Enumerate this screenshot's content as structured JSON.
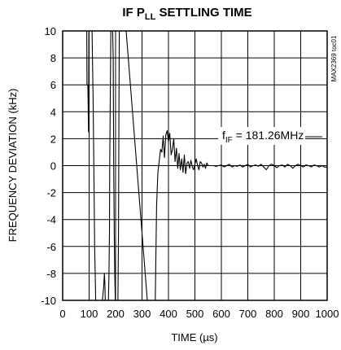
{
  "chart_data": {
    "type": "line",
    "title_main": "IF P",
    "title_sub": "LL",
    "title_rest": " SETTLING TIME",
    "xlabel": "TIME (µs)",
    "ylabel": "FREQUENCY DEVIATION (kHz)",
    "xlim": [
      0,
      1000
    ],
    "ylim": [
      -10,
      10
    ],
    "x_ticks": [
      0,
      100,
      200,
      300,
      400,
      500,
      600,
      700,
      800,
      900,
      1000
    ],
    "y_ticks": [
      10,
      8,
      6,
      4,
      2,
      0,
      -2,
      -4,
      -6,
      -8,
      -10
    ],
    "grid": true,
    "annotation_main": "f",
    "annotation_sub": "IF",
    "annotation_rest": " = 181.26MHz",
    "part_code": "MAX2369 toc01",
    "series": [
      {
        "x": [
          88,
          89,
          91,
          92,
          94,
          95,
          96,
          98,
          99,
          101,
          103,
          106,
          108,
          111,
          115,
          118,
          121,
          125,
          128,
          134,
          140,
          145,
          150,
          155,
          158,
          160,
          161,
          162,
          163,
          164,
          165,
          166,
          167,
          168,
          170,
          172,
          173,
          175,
          177,
          178,
          180,
          182,
          184,
          187,
          189,
          191,
          193,
          195,
          197,
          199,
          201,
          203,
          205,
          207,
          209,
          211,
          213,
          214,
          216,
          218,
          220,
          222,
          230,
          237,
          240,
          320,
          329,
          330,
          335,
          345,
          350,
          355,
          360,
          370,
          375,
          380,
          385,
          390,
          395,
          400,
          405,
          410,
          415,
          420,
          425,
          430,
          435,
          440,
          445,
          450,
          455,
          460,
          465,
          470,
          475,
          480,
          485,
          490,
          495,
          500,
          505,
          510,
          515,
          520,
          525,
          530,
          535,
          540,
          545,
          550,
          560,
          570,
          580,
          590,
          600,
          610,
          620,
          630,
          640,
          650,
          660,
          670,
          680,
          690,
          700,
          710,
          720,
          730,
          740,
          750,
          760,
          770,
          780,
          790,
          800,
          810,
          820,
          830,
          840,
          850,
          860,
          870,
          880,
          890,
          900,
          910,
          920,
          930,
          940,
          950,
          960,
          970,
          980,
          990,
          1000
        ],
        "y": [
          10,
          10,
          10,
          6,
          6,
          6,
          5,
          2.5,
          10,
          10,
          10,
          10,
          10,
          10,
          5,
          0,
          -6,
          -10,
          -10,
          -10,
          -10,
          -10,
          -10,
          -9,
          -8,
          -9,
          -10,
          -10,
          -10,
          -10,
          -10,
          -10,
          -10,
          -10,
          -10,
          -10,
          -10,
          -8,
          -5,
          0,
          5,
          10,
          10,
          10,
          10,
          8,
          0,
          -5,
          -8,
          -10,
          -10,
          -10,
          -10,
          -10,
          -10,
          -5,
          5,
          10,
          10,
          10,
          10,
          10,
          10,
          10,
          10,
          -10,
          -10,
          -10,
          -10,
          -10,
          -10,
          -3,
          -0.5,
          1.2,
          1.0,
          2.2,
          0.6,
          2.3,
          2.6,
          1.8,
          2.4,
          0.8,
          1.2,
          2.0,
          0.3,
          1.3,
          -0.2,
          0.9,
          -0.3,
          0.5,
          -0.5,
          0.8,
          -0.6,
          0.2,
          0.3,
          -0.2,
          0.4,
          -0.1,
          -0.3,
          0.1,
          0.5,
          0.0,
          -0.3,
          0.3,
          0.2,
          -0.1,
          0.1,
          -0.2,
          0.2,
          0.0,
          0.0,
          0.0,
          -0.05,
          0.0,
          0.05,
          -0.1,
          0.0,
          0.1,
          -0.1,
          0.0,
          -0.05,
          0.05,
          -0.1,
          0.0,
          0.1,
          -0.1,
          0.0,
          0.05,
          -0.05,
          0.1,
          -0.1,
          -0.3,
          0.0,
          0.1,
          0.0,
          -0.15,
          0.0,
          0.05,
          -0.1,
          0.1,
          0.0,
          -0.2,
          0.0,
          0.1,
          0.0,
          -0.1,
          0.05,
          0.0,
          -0.1,
          0.05,
          0.0,
          -0.1,
          0.0,
          -0.1,
          -0.1
        ]
      }
    ]
  }
}
